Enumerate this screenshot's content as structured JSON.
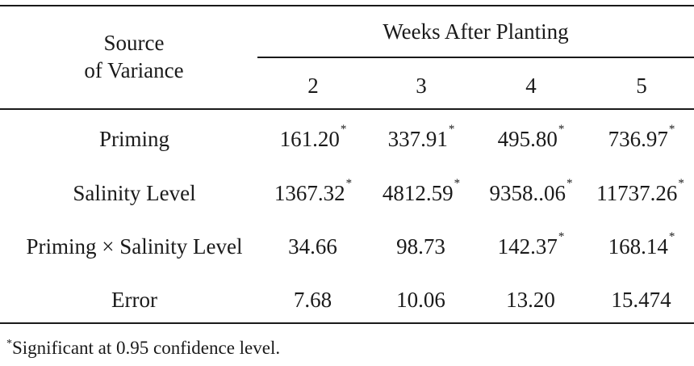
{
  "table": {
    "header": {
      "source_line1": "Source",
      "source_line2": "of Variance",
      "weeks_title": "Weeks After Planting",
      "weeks": [
        "2",
        "3",
        "4",
        "5"
      ]
    },
    "rows": [
      {
        "label": "Priming",
        "values": [
          {
            "value": "161.20",
            "mark": "*"
          },
          {
            "value": "337.91",
            "mark": "*"
          },
          {
            "value": "495.80",
            "mark": "*"
          },
          {
            "value": "736.97",
            "mark": "*"
          }
        ]
      },
      {
        "label": "Salinity Level",
        "values": [
          {
            "value": "1367.32",
            "mark": "*"
          },
          {
            "value": "4812.59",
            "mark": "*"
          },
          {
            "value": "9358..06",
            "mark": "*"
          },
          {
            "value": "11737.26",
            "mark": "*"
          }
        ]
      },
      {
        "label": "Priming × Salinity Level",
        "values": [
          {
            "value": "34.66",
            "mark": ""
          },
          {
            "value": "98.73",
            "mark": ""
          },
          {
            "value": "142.37",
            "mark": "*"
          },
          {
            "value": "168.14",
            "mark": "*"
          }
        ]
      },
      {
        "label": "Error",
        "values": [
          {
            "value": "7.68",
            "mark": ""
          },
          {
            "value": "10.06",
            "mark": ""
          },
          {
            "value": "13.20",
            "mark": ""
          },
          {
            "value": "15.474",
            "mark": ""
          }
        ]
      }
    ],
    "footnote": {
      "mark": "*",
      "text": "Significant at 0.95 confidence level."
    }
  }
}
